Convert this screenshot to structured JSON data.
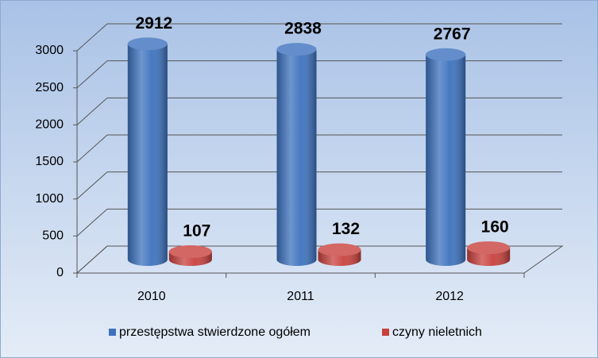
{
  "chart_data": {
    "type": "bar",
    "categories": [
      "2010",
      "2011",
      "2012"
    ],
    "series": [
      {
        "name": "przestępstwa stwierdzone ogółem",
        "color": "#3d72be",
        "values": [
          2912,
          2838,
          2767
        ]
      },
      {
        "name": "czyny nieletnich",
        "color": "#c8413d",
        "values": [
          107,
          132,
          160
        ]
      }
    ],
    "ylim": [
      0,
      3000
    ],
    "yticks": [
      0,
      500,
      1000,
      1500,
      2000,
      2500,
      3000
    ],
    "grid": true,
    "legend": "bottom"
  }
}
